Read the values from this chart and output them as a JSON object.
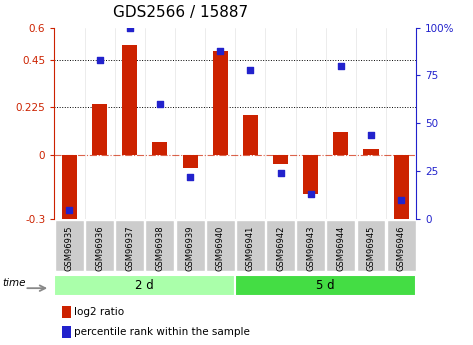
{
  "title": "GDS2566 / 15887",
  "samples": [
    "GSM96935",
    "GSM96936",
    "GSM96937",
    "GSM96938",
    "GSM96939",
    "GSM96940",
    "GSM96941",
    "GSM96942",
    "GSM96943",
    "GSM96944",
    "GSM96945",
    "GSM96946"
  ],
  "log2_ratio": [
    -0.32,
    0.24,
    0.52,
    0.06,
    -0.06,
    0.49,
    0.19,
    -0.04,
    -0.18,
    0.11,
    0.03,
    -0.3
  ],
  "percentile_rank": [
    5,
    83,
    100,
    60,
    22,
    88,
    78,
    24,
    13,
    80,
    44,
    10
  ],
  "groups": [
    {
      "label": "2 d",
      "start": 0,
      "end": 6,
      "color": "#aaffaa"
    },
    {
      "label": "5 d",
      "start": 6,
      "end": 12,
      "color": "#44dd44"
    }
  ],
  "bar_color": "#CC2200",
  "dot_color": "#2222CC",
  "ylim_left": [
    -0.3,
    0.6
  ],
  "ylim_right": [
    0,
    100
  ],
  "yticks_left": [
    -0.3,
    0,
    0.225,
    0.45,
    0.6
  ],
  "ytick_labels_left": [
    "-0.3",
    "0",
    "0.225",
    "0.45",
    "0.6"
  ],
  "yticks_right": [
    0,
    25,
    50,
    75,
    100
  ],
  "ytick_labels_right": [
    "0",
    "25",
    "50",
    "75",
    "100%"
  ],
  "hlines": [
    0.225,
    0.45
  ],
  "zero_line": 0,
  "background_color": "#ffffff",
  "bar_width": 0.5,
  "title_fontsize": 11,
  "legend_items": [
    "log2 ratio",
    "percentile rank within the sample"
  ],
  "tick_bg_color": "#cccccc"
}
